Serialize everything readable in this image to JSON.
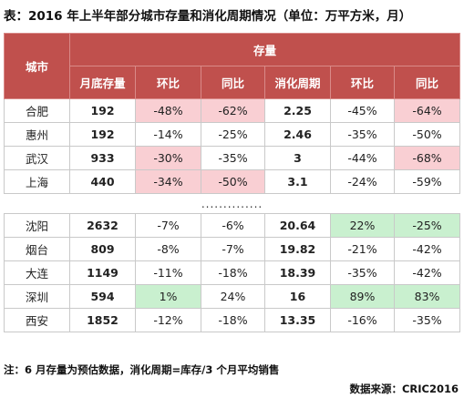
{
  "title": "表：2016 年上半年部分城市存量和消化周期情况（单位：万平方米，月）",
  "header": {
    "city": "城市",
    "group": "存量",
    "columns": [
      "月底存量",
      "环比",
      "同比",
      "消化周期",
      "环比",
      "同比"
    ]
  },
  "rows_top": [
    {
      "city": "合肥",
      "stock": "192",
      "mom": "-48%",
      "yoy": "-62%",
      "cycle": "2.25",
      "cycle_mom": "-45%",
      "cycle_yoy": "-64%"
    },
    {
      "city": "惠州",
      "stock": "192",
      "mom": "-14%",
      "yoy": "-25%",
      "cycle": "2.46",
      "cycle_mom": "-35%",
      "cycle_yoy": "-50%"
    },
    {
      "city": "武汉",
      "stock": "933",
      "mom": "-30%",
      "yoy": "-35%",
      "cycle": "3",
      "cycle_mom": "-44%",
      "cycle_yoy": "-68%"
    },
    {
      "city": "上海",
      "stock": "440",
      "mom": "-34%",
      "yoy": "-50%",
      "cycle": "3.1",
      "cycle_mom": "-24%",
      "cycle_yoy": "-59%"
    }
  ],
  "separator": "..............",
  "rows_bottom": [
    {
      "city": "沈阳",
      "stock": "2632",
      "mom": "-7%",
      "yoy": "-6%",
      "cycle": "20.64",
      "cycle_mom": "22%",
      "cycle_yoy": "-25%"
    },
    {
      "city": "烟台",
      "stock": "809",
      "mom": "-8%",
      "yoy": "-7%",
      "cycle": "19.82",
      "cycle_mom": "-21%",
      "cycle_yoy": "-42%"
    },
    {
      "city": "大连",
      "stock": "1149",
      "mom": "-11%",
      "yoy": "-18%",
      "cycle": "18.39",
      "cycle_mom": "-35%",
      "cycle_yoy": "-42%"
    },
    {
      "city": "深圳",
      "stock": "594",
      "mom": "1%",
      "yoy": "24%",
      "cycle": "16",
      "cycle_mom": "89%",
      "cycle_yoy": "83%"
    },
    {
      "city": "西安",
      "stock": "1852",
      "mom": "-12%",
      "yoy": "-18%",
      "cycle": "13.35",
      "cycle_mom": "-16%",
      "cycle_yoy": "-35%"
    }
  ],
  "colors": {
    "header": "#c0504d",
    "highlight_pink": "#f9cfd3",
    "highlight_green": "#c9f0cf"
  },
  "note": "注：6 月存量为预估数据，消化周期=库存/3 个月平均销售",
  "source": "数据来源：CRIC2016"
}
